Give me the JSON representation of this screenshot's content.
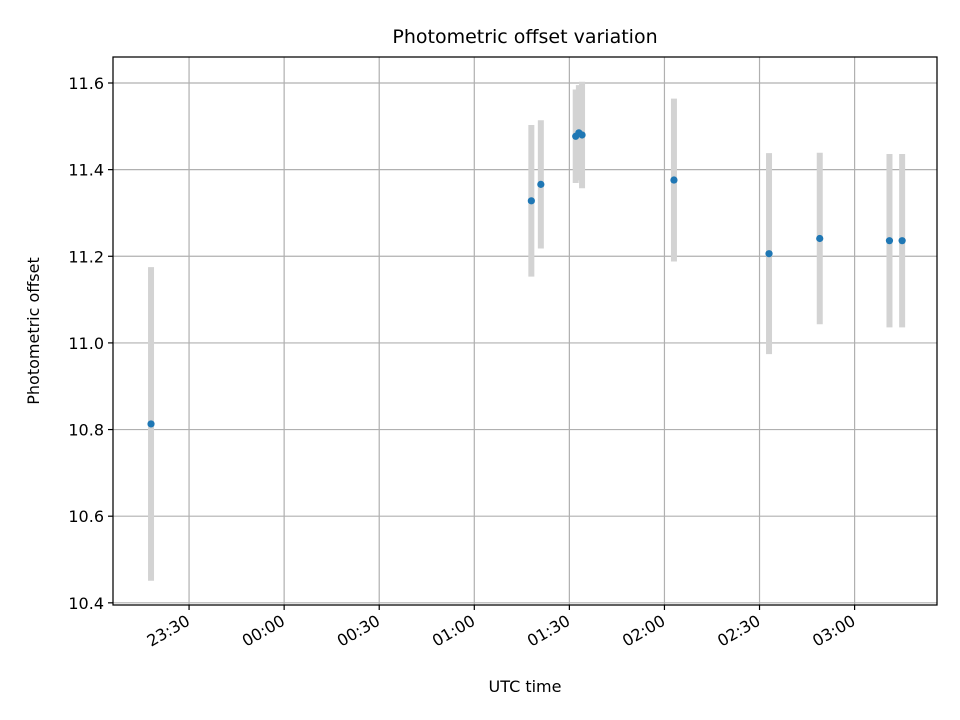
{
  "chart_data": {
    "type": "scatter",
    "title": "Photometric offset variation",
    "xlabel": "UTC time",
    "ylabel": "Photometric offset",
    "x_tick_labels": [
      "23:30",
      "00:00",
      "00:30",
      "01:00",
      "01:30",
      "02:00",
      "02:30",
      "03:00"
    ],
    "x_ticks": [
      "2000-01-01T23:30",
      "2000-01-02T00:00",
      "2000-01-02T00:30",
      "2000-01-02T01:00",
      "2000-01-02T01:30",
      "2000-01-02T02:00",
      "2000-01-02T02:30",
      "2000-01-02T03:00"
    ],
    "xlim": [
      "2000-01-01T23:06",
      "2000-01-02T03:26"
    ],
    "y_ticks": [
      "10.4",
      "10.6",
      "10.8",
      "11.0",
      "11.2",
      "11.4",
      "11.6"
    ],
    "ylim": [
      10.395,
      11.66
    ],
    "grid": true,
    "marker_color": "#1f77b4",
    "errorbar_color": "#d3d3d3",
    "points": [
      {
        "x": "2000-01-01T23:18",
        "y": 10.813,
        "err": 0.362
      },
      {
        "x": "2000-01-02T01:18",
        "y": 11.328,
        "err": 0.175
      },
      {
        "x": "2000-01-02T01:21",
        "y": 11.366,
        "err": 0.148
      },
      {
        "x": "2000-01-02T01:32",
        "y": 11.477,
        "err": 0.108
      },
      {
        "x": "2000-01-02T01:33",
        "y": 11.485,
        "err": 0.11
      },
      {
        "x": "2000-01-02T01:34",
        "y": 11.48,
        "err": 0.123
      },
      {
        "x": "2000-01-02T02:03",
        "y": 11.376,
        "err": 0.188
      },
      {
        "x": "2000-01-02T02:33",
        "y": 11.206,
        "err": 0.232
      },
      {
        "x": "2000-01-02T02:49",
        "y": 11.241,
        "err": 0.198
      },
      {
        "x": "2000-01-02T03:11",
        "y": 11.236,
        "err": 0.2
      },
      {
        "x": "2000-01-02T03:15",
        "y": 11.236,
        "err": 0.2
      }
    ]
  }
}
